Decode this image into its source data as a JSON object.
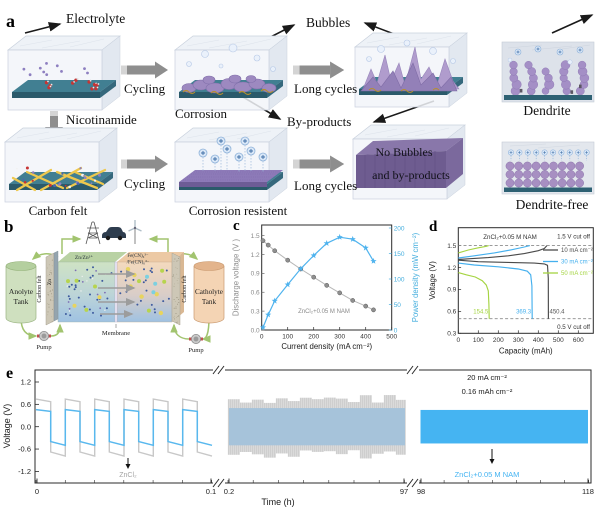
{
  "panels": {
    "a": "a",
    "b": "b",
    "c": "c",
    "d": "d",
    "e": "e"
  },
  "panel_a": {
    "electrolyte": "Electrolyte",
    "cycling_1": "Cycling",
    "corrosion": "Corrosion",
    "long_cycles_1": "Long cycles",
    "bubbles": "Bubbles",
    "by_products": "By-products",
    "dendrite": "Dendrite",
    "nicotinamide": "Nicotinamide",
    "carbon_felt": "Carbon felt",
    "cycling_2": "Cycling",
    "corrosion_resistent": "Corrosion resistent",
    "long_cycles_2": "Long cycles",
    "no_bubbles_line1": "No Bubbles",
    "no_bubbles_line2": "and by-products",
    "dendrite_free": "Dendrite-free"
  },
  "panel_b": {
    "anolyte_tank_line1": "Anolyte",
    "anolyte_tank_line2": "Tank",
    "catholyte_tank_line1": "Catholyte",
    "catholyte_tank_line2": "Tank",
    "carbon_felt_left": "Carbon felt",
    "zn_electrode": "Zn",
    "anode_couple": "Zn/Zn²⁺",
    "cathode_couple_line1": "Fe(CN)₆³⁻",
    "cathode_couple_line2": "/Fe(CN)₆⁴⁻",
    "membrane": "Membrane",
    "pump_left": "Pump",
    "pump_right": "Pump"
  },
  "chart_data": [
    {
      "id": "c",
      "panel_label": "c",
      "type": "line",
      "xlabel": "Current density (mA cm⁻²)",
      "ylabel_left": "Discharge voltage (V )",
      "ylabel_right": "Power density (mW cm⁻²)",
      "xlim": [
        0,
        500
      ],
      "xticks": [
        0,
        100,
        200,
        300,
        400,
        500
      ],
      "ylim_left": [
        0,
        1.65
      ],
      "yticks_left": [
        {
          "v": 0,
          "label": "0.0"
        },
        {
          "v": 0.3,
          "label": "0.3"
        },
        {
          "v": 0.6,
          "label": "0.6"
        },
        {
          "v": 0.9,
          "label": "0.9"
        },
        {
          "v": 1.2,
          "label": "1.2"
        },
        {
          "v": 1.5,
          "label": "1.5"
        }
      ],
      "ylim_right": [
        0,
        205
      ],
      "yticks_right": [
        0,
        50,
        100,
        150,
        200
      ],
      "annotation": "ZnCl₂+0.05 M NAM",
      "grid": false,
      "series": [
        {
          "name": "Discharge voltage",
          "axis": "left",
          "marker": "circle",
          "color": "#8f8f8f",
          "line_color": "#b7b7b7",
          "x": [
            5,
            25,
            50,
            100,
            150,
            200,
            250,
            300,
            350,
            400,
            430
          ],
          "y": [
            1.42,
            1.35,
            1.26,
            1.11,
            0.97,
            0.84,
            0.71,
            0.59,
            0.47,
            0.38,
            0.32
          ]
        },
        {
          "name": "Power density",
          "axis": "right",
          "marker": "star",
          "color": "#4fb3ee",
          "line_color": "#4fb3ee",
          "x": [
            5,
            25,
            50,
            100,
            150,
            200,
            250,
            300,
            350,
            400,
            430
          ],
          "y": [
            5,
            30,
            57,
            89,
            120,
            146,
            170,
            182,
            178,
            161,
            135
          ]
        }
      ]
    },
    {
      "id": "d",
      "panel_label": "d",
      "type": "line",
      "xlabel": "Capacity (mAh)",
      "ylabel": "Voltage (V)",
      "xlim": [
        0,
        675
      ],
      "xticks": [
        0,
        100,
        200,
        300,
        400,
        500,
        600
      ],
      "ylim": [
        0.28,
        1.62
      ],
      "yticks": [
        {
          "v": 0.3,
          "label": "0.3"
        },
        {
          "v": 0.6,
          "label": "0.6"
        },
        {
          "v": 0.9,
          "label": "0.9"
        },
        {
          "v": 1.2,
          "label": "1.2"
        },
        {
          "v": 1.5,
          "label": "1.5"
        }
      ],
      "annotation": "ZnCl₂+0.05 M NAM",
      "cutoffs": [
        {
          "value": 1.5,
          "label": "1.5 V cut off"
        },
        {
          "value": 0.5,
          "label": "0.5 V cut off"
        }
      ],
      "legend": [
        {
          "label": "10 mA cm⁻²",
          "color": "#4a4a4a"
        },
        {
          "label": "30 mA cm⁻²",
          "color": "#45b0ee"
        },
        {
          "label": "50 mA cm⁻²",
          "color": "#a5d442"
        }
      ],
      "curves": [
        {
          "name": "10 mA charge",
          "color": "#4a4a4a",
          "points": [
            [
              0,
              1.31
            ],
            [
              60,
              1.32
            ],
            [
              150,
              1.335
            ],
            [
              250,
              1.36
            ],
            [
              330,
              1.39
            ],
            [
              400,
              1.43
            ],
            [
              430,
              1.46
            ],
            [
              443,
              1.5
            ]
          ]
        },
        {
          "name": "10 mA discharge",
          "color": "#4a4a4a",
          "points": [
            [
              0,
              1.3
            ],
            [
              100,
              1.28
            ],
            [
              250,
              1.27
            ],
            [
              380,
              1.26
            ],
            [
              430,
              1.25
            ],
            [
              446,
              1.23
            ],
            [
              450,
              1.05
            ],
            [
              450.4,
              0.5
            ]
          ]
        },
        {
          "name": "30 mA charge",
          "color": "#45b0ee",
          "points": [
            [
              0,
              1.33
            ],
            [
              80,
              1.36
            ],
            [
              180,
              1.4
            ],
            [
              260,
              1.44
            ],
            [
              330,
              1.48
            ],
            [
              358,
              1.5
            ]
          ]
        },
        {
          "name": "30 mA discharge",
          "color": "#45b0ee",
          "points": [
            [
              0,
              1.26
            ],
            [
              80,
              1.235
            ],
            [
              200,
              1.21
            ],
            [
              300,
              1.18
            ],
            [
              345,
              1.15
            ],
            [
              362,
              1.1
            ],
            [
              368,
              0.95
            ],
            [
              369.3,
              0.5
            ]
          ]
        },
        {
          "name": "50 mA charge",
          "color": "#a5d442",
          "points": [
            [
              0,
              1.4
            ],
            [
              50,
              1.44
            ],
            [
              100,
              1.47
            ],
            [
              140,
              1.49
            ],
            [
              152,
              1.5
            ]
          ]
        },
        {
          "name": "50 mA discharge",
          "color": "#a5d442",
          "points": [
            [
              0,
              1.13
            ],
            [
              40,
              1.1
            ],
            [
              85,
              1.07
            ],
            [
              120,
              1.02
            ],
            [
              140,
              0.96
            ],
            [
              150,
              0.88
            ],
            [
              153,
              0.7
            ],
            [
              154.5,
              0.5
            ]
          ]
        }
      ],
      "end_labels": [
        {
          "text": "154.5",
          "color": "#a5d442",
          "ax": 150,
          "ay": 0.57,
          "anchor": "end"
        },
        {
          "text": "369.3",
          "color": "#45b0ee",
          "ax": 364,
          "ay": 0.57,
          "anchor": "end"
        },
        {
          "text": "450.4",
          "color": "#555555",
          "ax": 456,
          "ay": 0.57,
          "anchor": "start"
        }
      ]
    },
    {
      "id": "e",
      "panel_label": "e",
      "type": "line",
      "xlabel": "Time (h)",
      "ylabel": "Voltage (V)",
      "ylim": [
        -1.55,
        1.55
      ],
      "yticks": [
        {
          "v": 1.2,
          "label": "1.2"
        },
        {
          "v": 0.6,
          "label": "0.6"
        },
        {
          "v": 0,
          "label": "0.0"
        },
        {
          "v": -0.6,
          "label": "-0.6"
        },
        {
          "v": -1.2,
          "label": "-1.2"
        }
      ],
      "sections": [
        {
          "tick_labels": [
            "0",
            "0.1"
          ],
          "type": "square_wave",
          "n_cycles": 6,
          "gray": {
            "name": "ZnCl₂",
            "color": "#c8c8c8",
            "high": [
              0.74,
              0.67
            ],
            "low": [
              -0.68,
              -0.79
            ]
          },
          "blue": {
            "name": "ZnCl₂+0.05 M NAM",
            "color": "#58b8ee",
            "high": [
              0.46,
              0.41
            ],
            "low": [
              -0.4,
              -0.5
            ]
          }
        },
        {
          "tick_labels": [
            "0.2",
            "97"
          ],
          "type": "dense_band",
          "gray_band": [
            0.62,
            0.86
          ],
          "blue_band": 0.5
        },
        {
          "tick_labels": [
            "98",
            "118"
          ],
          "type": "solid_band",
          "blue_band": 0.45
        }
      ],
      "annotations": {
        "gray_label": "ZnCl₂",
        "blue_label": "ZnCl₂+0.05 M NAM",
        "current": "20 mA cm⁻²",
        "capacity": "0.16 mAh cm⁻²"
      },
      "colors": {
        "blue_bright": "#45b4f2",
        "blue_muted": "#a6c3da",
        "gray": "#cecece"
      }
    }
  ]
}
